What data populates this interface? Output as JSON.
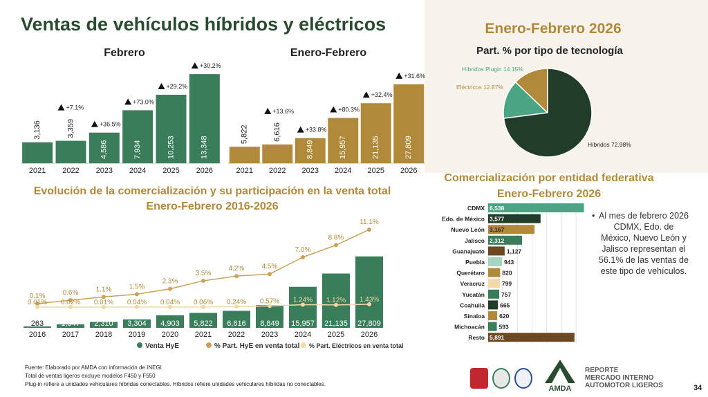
{
  "slide": {
    "title": "Ventas de vehículos híbridos y eléctricos",
    "period_title": "Enero-Febrero 2026",
    "page_number": "34"
  },
  "colors": {
    "green": "#3a7d5a",
    "gold": "#b08a3a",
    "dark_green": "#213d2a",
    "light_gold": "#f2d9a6",
    "teal": "#4aa585",
    "brown": "#6b4a23"
  },
  "chart_data": [
    {
      "id": "febrero",
      "type": "bar",
      "title": "Febrero",
      "categories": [
        "2021",
        "2022",
        "2023",
        "2024",
        "2025",
        "2026"
      ],
      "values": [
        3136,
        3359,
        4586,
        7934,
        10253,
        13348
      ],
      "value_labels": [
        "3,136",
        "3,359",
        "4,586",
        "7,934",
        "10,253",
        "13,348"
      ],
      "growth_labels": [
        "",
        "+7.1%",
        "+36.5%",
        "+73.0%",
        "+29.2%",
        "+30.2%"
      ],
      "ylim": [
        0,
        14500
      ]
    },
    {
      "id": "enero_febrero",
      "type": "bar",
      "title": "Enero-Febrero",
      "categories": [
        "2021",
        "2022",
        "2023",
        "2024",
        "2025",
        "2026"
      ],
      "values": [
        5822,
        6616,
        8849,
        15957,
        21135,
        27809
      ],
      "value_labels": [
        "5,822",
        "6,616",
        "8,849",
        "15,957",
        "21,135",
        "27,809"
      ],
      "growth_labels": [
        "",
        "+13.6%",
        "+33.8%",
        "+80.3%",
        "+32.4%",
        "+31.6%"
      ],
      "ylim": [
        0,
        30200
      ]
    },
    {
      "id": "participacion",
      "type": "pie",
      "title": "Part. % por tipo de tecnología",
      "slices": [
        {
          "label": "Híbridos Plugin 14.15%",
          "value": 14.15
        },
        {
          "label": "Eléctricos 12.87%",
          "value": 12.87
        },
        {
          "label": "Híbridos 72.98%",
          "value": 72.98
        }
      ]
    },
    {
      "id": "evolucion",
      "type": "bar",
      "title": "Evolución de la comercialización y su participación en la venta total",
      "subtitle": "Enero-Febrero 2016-2026",
      "categories": [
        "2016",
        "2017",
        "2018",
        "2019",
        "2020",
        "2021",
        "2022",
        "2023",
        "2024",
        "2025",
        "2026"
      ],
      "values": [
        263,
        1347,
        2310,
        3304,
        4903,
        5822,
        6616,
        8849,
        15957,
        21135,
        27809
      ],
      "value_labels": [
        "263",
        "1,347",
        "2,310",
        "3,304",
        "4,903",
        "5,822",
        "6,616",
        "8,849",
        "15,957",
        "21,135",
        "27,809"
      ],
      "ylim": [
        0,
        28000
      ],
      "series": [
        {
          "name": "Venta HyE",
          "values": [
            263,
            1347,
            2310,
            3304,
            4903,
            5822,
            6616,
            8849,
            15957,
            21135,
            27809
          ]
        },
        {
          "name": "% Part. HyE en venta total",
          "values": [
            0.1,
            0.6,
            1.1,
            1.5,
            2.3,
            3.5,
            4.2,
            4.5,
            7.0,
            8.8,
            11.1
          ],
          "labels": [
            "0.1%",
            "0.6%",
            "1.1%",
            "1.5%",
            "2.3%",
            "3.5%",
            "4.2%",
            "4.5%",
            "7.0%",
            "8.8%",
            "11.1%"
          ]
        },
        {
          "name": "% Part. Eléctricos en venta total",
          "values": [
            0.01,
            0.02,
            0.01,
            0.04,
            0.04,
            0.06,
            0.24,
            0.57,
            1.24,
            1.12,
            1.43
          ],
          "labels": [
            "0.01%",
            "0.02%",
            "0.01%",
            "0.04%",
            "0.04%",
            "0.06%",
            "0.24%",
            "0.57%",
            "1.24%",
            "1.12%",
            "1.43%"
          ]
        }
      ],
      "legend": [
        "Venta HyE",
        "% Part. HyE en venta total",
        "% Part. Eléctricos en venta total"
      ]
    },
    {
      "id": "entidades",
      "type": "bar",
      "orientation": "horizontal",
      "title": "Comercialización por entidad federativa",
      "subtitle": "Enero-Febrero 2026",
      "categories": [
        "CDMX",
        "Edo. de México",
        "Nuevo León",
        "Jalisco",
        "Guanajuato",
        "Puebla",
        "Querétaro",
        "Veracruz",
        "Yucatán",
        "Coahuila",
        "Sinaloa",
        "Michoacán",
        "Resto"
      ],
      "values": [
        6538,
        3577,
        3167,
        2312,
        1127,
        943,
        820,
        799,
        757,
        665,
        620,
        593,
        5891
      ],
      "value_labels": [
        "6,538",
        "3,577",
        "3,167",
        "2,312",
        "1,127",
        "943",
        "820",
        "799",
        "757",
        "665",
        "620",
        "593",
        "5,891"
      ],
      "xlim": [
        0,
        6700
      ]
    }
  ],
  "note": "Al mes de febrero 2026 CDMX, Edo. de México, Nuevo León y Jalisco representan el 56.1% de las ventas de este tipo de vehículos.",
  "footer": [
    "Fuente: Elaborado por AMDA con información de INEGI",
    "Total de ventas ligeros excluye modelos F450 y F550",
    "Plug-in refiere a unidades vehiculares híbridas conectables. Híbridos refiere unidades vehiculares híbridas no conectables."
  ],
  "brand": {
    "logo_text": "AMDA",
    "report_line1": "REPORTE",
    "report_line2": "MERCADO INTERNO",
    "report_line3": "AUTOMOTOR LIGEROS"
  }
}
